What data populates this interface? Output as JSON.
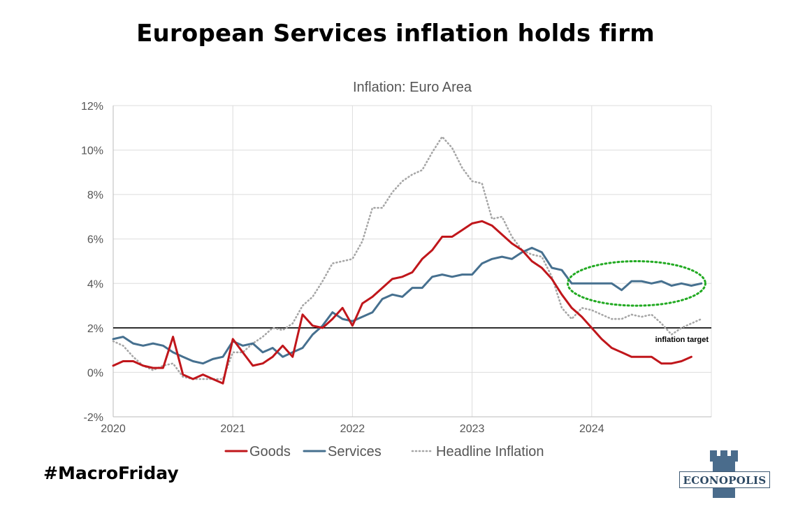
{
  "title": "European Services inflation holds firm",
  "hashtag": "#MacroFriday",
  "logo": {
    "text": "ECONOPOLIS",
    "icon": "castle-tower-icon",
    "color": "#4a6c8c"
  },
  "chart_data": {
    "type": "line",
    "title": "Inflation: Euro Area",
    "xlabel": "",
    "ylabel": "",
    "xlim": [
      2020,
      2025
    ],
    "ylim": [
      -2,
      12
    ],
    "x_ticks": [
      2020,
      2021,
      2022,
      2023,
      2024
    ],
    "y_ticks": [
      -2,
      0,
      2,
      4,
      6,
      8,
      10,
      12
    ],
    "y_tick_suffix": "%",
    "grid": true,
    "legend_position": "bottom",
    "reference_line": {
      "value": 2,
      "label": "inflation target",
      "color": "#000000"
    },
    "annotation": {
      "type": "ellipse",
      "color": "#22aa22",
      "x_range": [
        2023.8,
        2024.95
      ],
      "y_range": [
        3.0,
        5.0
      ]
    },
    "series": [
      {
        "name": "Goods",
        "color": "#c0161b",
        "style": "solid",
        "x": [
          2020.0,
          2020.083,
          2020.167,
          2020.25,
          2020.333,
          2020.417,
          2020.5,
          2020.583,
          2020.667,
          2020.75,
          2020.833,
          2020.917,
          2021.0,
          2021.083,
          2021.167,
          2021.25,
          2021.333,
          2021.417,
          2021.5,
          2021.583,
          2021.667,
          2021.75,
          2021.833,
          2021.917,
          2022.0,
          2022.083,
          2022.167,
          2022.25,
          2022.333,
          2022.417,
          2022.5,
          2022.583,
          2022.667,
          2022.75,
          2022.833,
          2022.917,
          2023.0,
          2023.083,
          2023.167,
          2023.25,
          2023.333,
          2023.417,
          2023.5,
          2023.583,
          2023.667,
          2023.75,
          2023.833,
          2023.917,
          2024.0,
          2024.083,
          2024.167,
          2024.25,
          2024.333,
          2024.417,
          2024.5,
          2024.583,
          2024.667,
          2024.75,
          2024.833
        ],
        "y": [
          0.3,
          0.5,
          0.5,
          0.3,
          0.2,
          0.2,
          1.6,
          -0.1,
          -0.3,
          -0.1,
          -0.3,
          -0.5,
          1.5,
          0.9,
          0.3,
          0.4,
          0.7,
          1.2,
          0.7,
          2.6,
          2.1,
          2.0,
          2.4,
          2.9,
          2.1,
          3.1,
          3.4,
          3.8,
          4.2,
          4.3,
          4.5,
          5.1,
          5.5,
          6.1,
          6.1,
          6.4,
          6.7,
          6.8,
          6.6,
          6.2,
          5.8,
          5.5,
          5.0,
          4.7,
          4.2,
          3.5,
          2.9,
          2.5,
          2.0,
          1.5,
          1.1,
          0.9,
          0.7,
          0.7,
          0.7,
          0.4,
          0.4,
          0.5,
          0.7
        ]
      },
      {
        "name": "Services",
        "color": "#46708f",
        "style": "solid",
        "x": [
          2020.0,
          2020.083,
          2020.167,
          2020.25,
          2020.333,
          2020.417,
          2020.5,
          2020.583,
          2020.667,
          2020.75,
          2020.833,
          2020.917,
          2021.0,
          2021.083,
          2021.167,
          2021.25,
          2021.333,
          2021.417,
          2021.5,
          2021.583,
          2021.667,
          2021.75,
          2021.833,
          2021.917,
          2022.0,
          2022.083,
          2022.167,
          2022.25,
          2022.333,
          2022.417,
          2022.5,
          2022.583,
          2022.667,
          2022.75,
          2022.833,
          2022.917,
          2023.0,
          2023.083,
          2023.167,
          2023.25,
          2023.333,
          2023.417,
          2023.5,
          2023.583,
          2023.667,
          2023.75,
          2023.833,
          2023.917,
          2024.0,
          2024.083,
          2024.167,
          2024.25,
          2024.333,
          2024.417,
          2024.5,
          2024.583,
          2024.667,
          2024.75,
          2024.833,
          2024.917
        ],
        "y": [
          1.5,
          1.6,
          1.3,
          1.2,
          1.3,
          1.2,
          0.9,
          0.7,
          0.5,
          0.4,
          0.6,
          0.7,
          1.4,
          1.2,
          1.3,
          0.9,
          1.1,
          0.7,
          0.9,
          1.1,
          1.7,
          2.1,
          2.7,
          2.4,
          2.3,
          2.5,
          2.7,
          3.3,
          3.5,
          3.4,
          3.8,
          3.8,
          4.3,
          4.4,
          4.3,
          4.4,
          4.4,
          4.9,
          5.1,
          5.2,
          5.1,
          5.4,
          5.6,
          5.4,
          4.7,
          4.6,
          4.0,
          4.0,
          4.0,
          4.0,
          4.0,
          3.7,
          4.1,
          4.1,
          4.0,
          4.1,
          3.9,
          4.0,
          3.9,
          4.0
        ]
      },
      {
        "name": "Headline Inflation",
        "color": "#a6a6a6",
        "style": "dotted",
        "x": [
          2020.0,
          2020.083,
          2020.167,
          2020.25,
          2020.333,
          2020.417,
          2020.5,
          2020.583,
          2020.667,
          2020.75,
          2020.833,
          2020.917,
          2021.0,
          2021.083,
          2021.167,
          2021.25,
          2021.333,
          2021.417,
          2021.5,
          2021.583,
          2021.667,
          2021.75,
          2021.833,
          2021.917,
          2022.0,
          2022.083,
          2022.167,
          2022.25,
          2022.333,
          2022.417,
          2022.5,
          2022.583,
          2022.667,
          2022.75,
          2022.833,
          2022.917,
          2023.0,
          2023.083,
          2023.167,
          2023.25,
          2023.333,
          2023.417,
          2023.5,
          2023.583,
          2023.667,
          2023.75,
          2023.833,
          2023.917,
          2024.0,
          2024.083,
          2024.167,
          2024.25,
          2024.333,
          2024.417,
          2024.5,
          2024.583,
          2024.667,
          2024.75,
          2024.833,
          2024.917
        ],
        "y": [
          1.4,
          1.2,
          0.7,
          0.3,
          0.1,
          0.3,
          0.4,
          -0.2,
          -0.3,
          -0.3,
          -0.3,
          -0.3,
          0.9,
          0.9,
          1.3,
          1.6,
          2.0,
          1.9,
          2.2,
          3.0,
          3.4,
          4.1,
          4.9,
          5.0,
          5.1,
          5.9,
          7.4,
          7.4,
          8.1,
          8.6,
          8.9,
          9.1,
          9.9,
          10.6,
          10.1,
          9.2,
          8.6,
          8.5,
          6.9,
          7.0,
          6.1,
          5.5,
          5.3,
          5.2,
          4.3,
          2.9,
          2.4,
          2.9,
          2.8,
          2.6,
          2.4,
          2.4,
          2.6,
          2.5,
          2.6,
          2.2,
          1.7,
          2.0,
          2.2,
          2.4
        ]
      }
    ]
  }
}
